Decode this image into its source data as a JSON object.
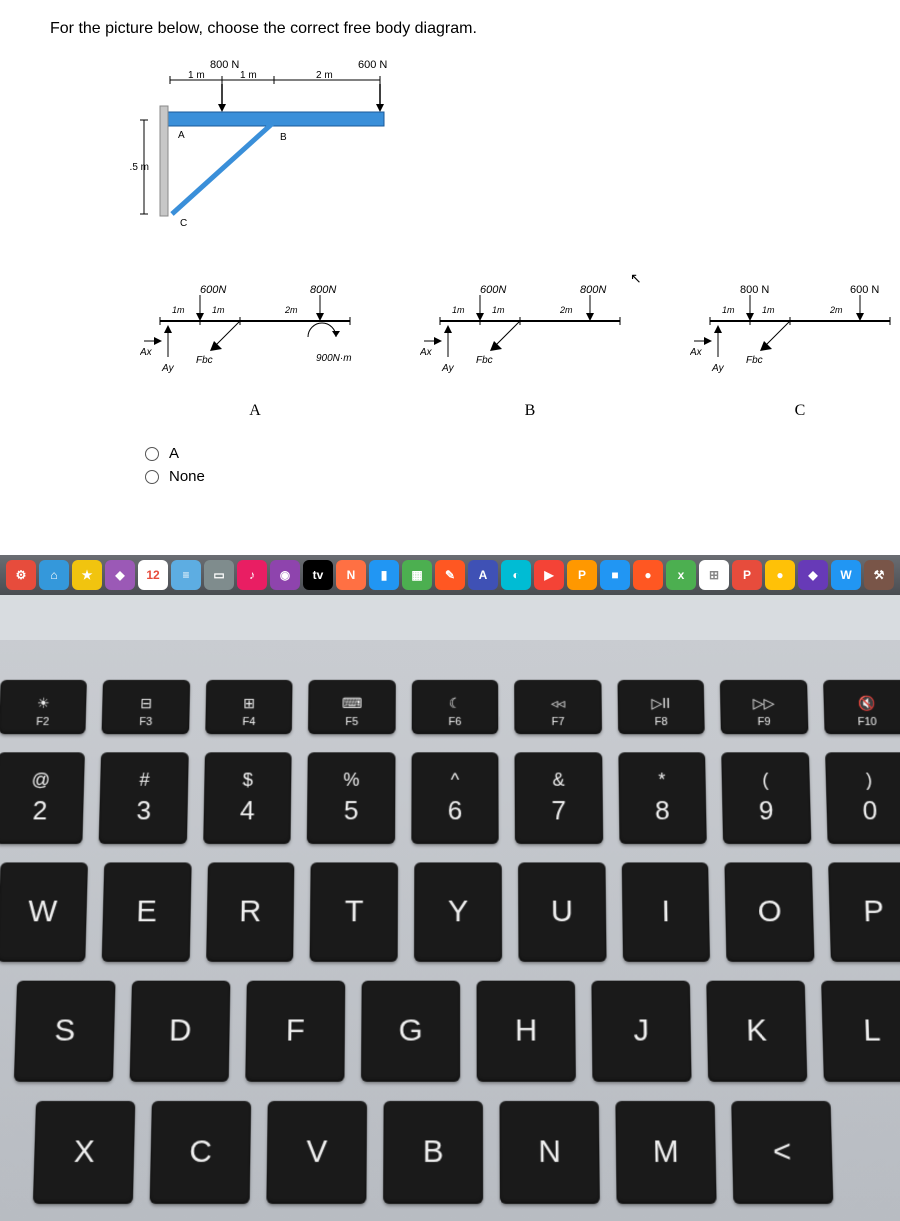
{
  "question": "For the picture below, choose the correct free body diagram.",
  "problem": {
    "force1": "800 N",
    "force2": "600 N",
    "d1": "1 m",
    "d2": "1 m",
    "d3": "2 m",
    "height": "1.5 m",
    "ptA": "A",
    "ptB": "B",
    "ptC": "C"
  },
  "options": {
    "A": {
      "f1": "600N",
      "f2": "800N",
      "d1": "1m",
      "d2": "1m",
      "d3": "2m",
      "ax": "Ax",
      "ay": "Ay",
      "fbc": "Fbc",
      "moment": "900N·m",
      "label": "A"
    },
    "B": {
      "f1": "600N",
      "f2": "800N",
      "d1": "1m",
      "d2": "1m",
      "d3": "2m",
      "ax": "Ax",
      "ay": "Ay",
      "fbc": "Fbc",
      "label": "B"
    },
    "C": {
      "f1": "800 N",
      "f2": "600 N",
      "d1": "1m",
      "d2": "1m",
      "d3": "2m",
      "ax": "Ax",
      "ay": "Ay",
      "fbc": "Fbc",
      "label": "C"
    }
  },
  "radios": {
    "a": "A",
    "none": "None"
  },
  "dock": {
    "items": [
      {
        "bg": "#e74c3c",
        "txt": "⚙"
      },
      {
        "bg": "#3498db",
        "txt": "⌂"
      },
      {
        "bg": "#f1c40f",
        "txt": "★"
      },
      {
        "bg": "#9b59b6",
        "txt": "◆"
      },
      {
        "bg": "#ffffff",
        "txt": "12",
        "fg": "#e74c3c"
      },
      {
        "bg": "#5dade2",
        "txt": "≡"
      },
      {
        "bg": "#7f8c8d",
        "txt": "▭"
      },
      {
        "bg": "#e91e63",
        "txt": "♪"
      },
      {
        "bg": "#8e44ad",
        "txt": "◉"
      },
      {
        "bg": "#000000",
        "txt": "tv"
      },
      {
        "bg": "#ff7043",
        "txt": "N"
      },
      {
        "bg": "#2196f3",
        "txt": "▮"
      },
      {
        "bg": "#4caf50",
        "txt": "▦"
      },
      {
        "bg": "#ff5722",
        "txt": "✎"
      },
      {
        "bg": "#3f51b5",
        "txt": "A"
      },
      {
        "bg": "#00bcd4",
        "txt": "◐"
      },
      {
        "bg": "#f44336",
        "txt": "▶"
      },
      {
        "bg": "#ff9800",
        "txt": "P"
      },
      {
        "bg": "#2196f3",
        "txt": "■"
      },
      {
        "bg": "#ff5722",
        "txt": "●"
      },
      {
        "bg": "#4caf50",
        "txt": "x"
      },
      {
        "bg": "#ffffff",
        "txt": "⊞",
        "fg": "#888"
      },
      {
        "bg": "#e74c3c",
        "txt": "P"
      },
      {
        "bg": "#ffc107",
        "txt": "●"
      },
      {
        "bg": "#673ab7",
        "txt": "◆"
      },
      {
        "bg": "#2196f3",
        "txt": "W"
      },
      {
        "bg": "#795548",
        "txt": "⚒"
      }
    ]
  },
  "keyboard": {
    "fn": [
      {
        "ico": "☀",
        "lab": "F2"
      },
      {
        "ico": "⊟",
        "lab": "F3"
      },
      {
        "ico": "⊞",
        "lab": "F4"
      },
      {
        "ico": "⌨",
        "lab": "F5"
      },
      {
        "ico": "☾",
        "lab": "F6"
      },
      {
        "ico": "◃◃",
        "lab": "F7"
      },
      {
        "ico": "▷II",
        "lab": "F8"
      },
      {
        "ico": "▷▷",
        "lab": "F9"
      },
      {
        "ico": "🔇",
        "lab": "F10"
      }
    ],
    "num": [
      {
        "s": "@",
        "d": "2"
      },
      {
        "s": "#",
        "d": "3"
      },
      {
        "s": "$",
        "d": "4"
      },
      {
        "s": "%",
        "d": "5"
      },
      {
        "s": "^",
        "d": "6"
      },
      {
        "s": "&",
        "d": "7"
      },
      {
        "s": "*",
        "d": "8"
      },
      {
        "s": "(",
        "d": "9"
      },
      {
        "s": ")",
        "d": "0"
      }
    ],
    "r1": [
      "W",
      "E",
      "R",
      "T",
      "Y",
      "U",
      "I",
      "O",
      "P"
    ],
    "r2": [
      "S",
      "D",
      "F",
      "G",
      "H",
      "J",
      "K",
      "L"
    ],
    "r3": [
      "X",
      "C",
      "V",
      "B",
      "N",
      "M",
      "<"
    ]
  }
}
